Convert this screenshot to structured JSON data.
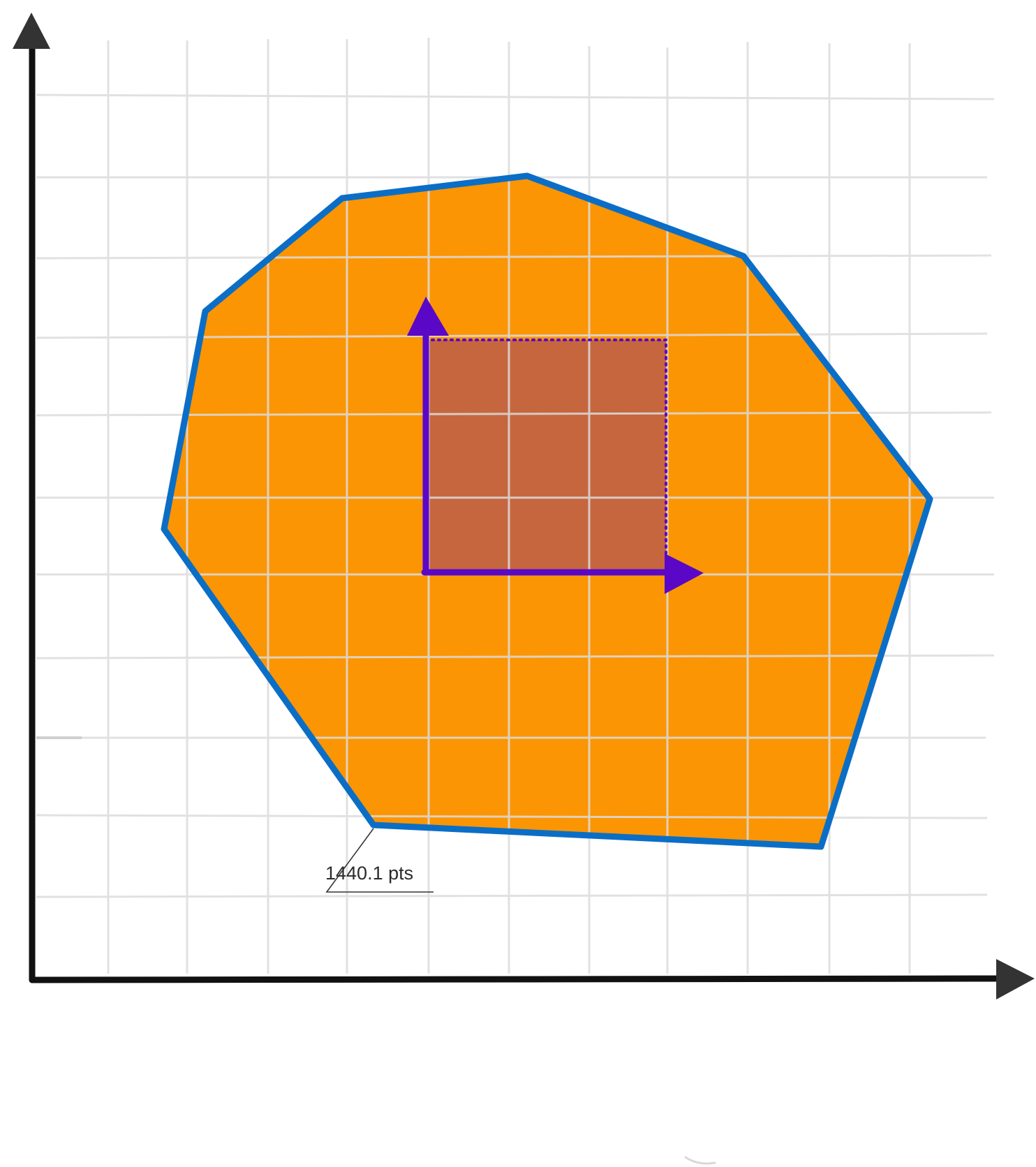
{
  "diagram": {
    "description_label": "1440.1 pts",
    "colors": {
      "background": "#ffffff",
      "axis": "#111111",
      "axis_arrowhead": "#333333",
      "grid": "#dcdcdc",
      "polygon_fill": "#fb9503",
      "polygon_stroke": "#0b6ec6",
      "rect_fill": "#c6663f",
      "vector_color": "#5b07c8",
      "label_text": "#2b2b2b",
      "leader_line": "#333333"
    },
    "icons": {
      "x_axis_arrow": "triangle-right-icon",
      "y_axis_arrow": "triangle-up-icon",
      "basis_x_arrow": "triangle-right-icon",
      "basis_y_arrow": "triangle-up-icon"
    }
  }
}
